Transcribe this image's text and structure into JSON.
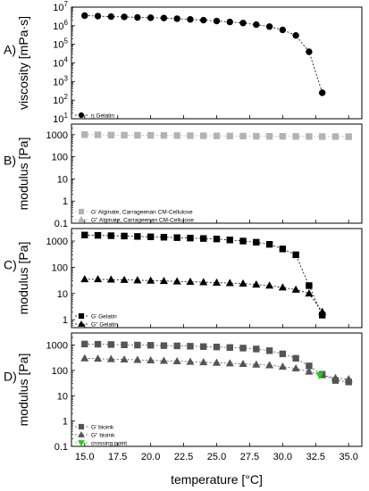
{
  "chart_data": {
    "type": "scatter",
    "x_axis": {
      "label": "temperature [°C]",
      "ticks": [
        15.0,
        17.5,
        20.0,
        22.5,
        25.0,
        27.5,
        30.0,
        32.5,
        35.0
      ],
      "tick_labels": [
        "15.0",
        "17.5",
        "20.0",
        "22.5",
        "25.0",
        "27.5",
        "30.0",
        "32.5",
        "35.0"
      ],
      "xlim": [
        14.0,
        36.0
      ]
    },
    "panels": [
      {
        "label": "A)",
        "ylabel": "viscosity [mPa·s]",
        "yscale": "log",
        "ylim": [
          10,
          10000000
        ],
        "ytick_exponents": [
          1,
          2,
          3,
          4,
          5,
          6,
          7
        ],
        "ytick_base": "10",
        "series": [
          {
            "name": "η Gelatin",
            "marker": "circle",
            "color": "#000000",
            "x": [
              15,
              16,
              17,
              18,
              19,
              20,
              21,
              22,
              23,
              24,
              25,
              26,
              27,
              28,
              29,
              30,
              31,
              32,
              33
            ],
            "y": [
              3500000,
              3300000,
              3100000,
              3000000,
              2800000,
              2700000,
              2600000,
              2400000,
              2200000,
              2000000,
              1800000,
              1600000,
              1400000,
              1150000,
              900000,
              600000,
              300000,
              40000,
              250
            ]
          }
        ]
      },
      {
        "label": "B)",
        "ylabel": "modulus [Pa]",
        "yscale": "log",
        "ylim": [
          0.1,
          3000
        ],
        "ytick_values": [
          0.1,
          1,
          10,
          100,
          1000
        ],
        "ytick_labels": [
          "0.1",
          "1",
          "10",
          "100",
          "1000"
        ],
        "series": [
          {
            "name": "G' Alginate, Carrageenan CM-Cellulose",
            "marker": "square",
            "color": "#b3b3b3",
            "x": [
              15,
              16,
              17,
              18,
              19,
              20,
              21,
              22,
              23,
              24,
              25,
              26,
              27,
              28,
              29,
              30,
              31,
              32,
              33,
              34,
              35
            ],
            "y": [
              1000,
              980,
              960,
              950,
              940,
              930,
              920,
              910,
              900,
              890,
              880,
              870,
              860,
              850,
              840,
              840,
              830,
              830,
              820,
              820,
              810
            ]
          },
          {
            "name": "G'' Alginate, Carrageenan CM-Cellulose",
            "marker": "triangle",
            "color": "#b3b3b3",
            "x": [],
            "y": []
          }
        ]
      },
      {
        "label": "C)",
        "ylabel": "modulus [Pa]",
        "yscale": "log",
        "ylim": [
          0.5,
          3000
        ],
        "ytick_values": [
          1,
          10,
          100,
          1000
        ],
        "ytick_labels": [
          "1",
          "10",
          "100",
          "1000"
        ],
        "series": [
          {
            "name": "G' Gelatin",
            "marker": "square",
            "color": "#000000",
            "x": [
              15,
              16,
              17,
              18,
              19,
              20,
              21,
              22,
              23,
              24,
              25,
              26,
              27,
              28,
              29,
              30,
              31,
              32,
              33
            ],
            "y": [
              1700,
              1650,
              1600,
              1550,
              1500,
              1450,
              1400,
              1350,
              1300,
              1250,
              1200,
              1100,
              1000,
              900,
              750,
              500,
              300,
              20,
              1.5
            ]
          },
          {
            "name": "G'' Gelatin",
            "marker": "triangle",
            "color": "#000000",
            "x": [
              15,
              16,
              17,
              18,
              19,
              20,
              21,
              22,
              23,
              24,
              25,
              26,
              27,
              28,
              29,
              30,
              31,
              32,
              33
            ],
            "y": [
              35,
              35,
              34,
              33,
              32,
              31,
              30,
              29,
              28,
              27,
              26,
              25,
              24,
              22,
              20,
              17,
              14,
              10,
              2
            ]
          }
        ]
      },
      {
        "label": "D)",
        "ylabel": "modulus [Pa]",
        "yscale": "log",
        "ylim": [
          0.1,
          3000
        ],
        "ytick_values": [
          0.1,
          1,
          10,
          100,
          1000
        ],
        "ytick_labels": [
          "0.1",
          "1",
          "10",
          "100",
          "1000"
        ],
        "series": [
          {
            "name": "G' bioink",
            "marker": "square",
            "color": "#555555",
            "x": [
              15,
              16,
              17,
              18,
              19,
              20,
              21,
              22,
              23,
              24,
              25,
              26,
              27,
              28,
              29,
              30,
              31,
              32,
              33,
              34,
              35
            ],
            "y": [
              1100,
              1080,
              1050,
              1020,
              1000,
              980,
              950,
              930,
              900,
              870,
              840,
              800,
              760,
              700,
              600,
              450,
              300,
              150,
              70,
              40,
              35
            ]
          },
          {
            "name": "G'' bioink",
            "marker": "triangle",
            "color": "#555555",
            "x": [
              15,
              16,
              17,
              18,
              19,
              20,
              21,
              22,
              23,
              24,
              25,
              26,
              27,
              28,
              29,
              30,
              31,
              32,
              33,
              34,
              35
            ],
            "y": [
              300,
              290,
              280,
              270,
              260,
              250,
              240,
              230,
              220,
              210,
              200,
              190,
              180,
              170,
              160,
              140,
              120,
              90,
              65,
              50,
              45
            ]
          },
          {
            "name": "crossing point",
            "marker": "triangle-down",
            "color": "#22cc22",
            "x": [
              32.8
            ],
            "y": [
              65
            ]
          }
        ]
      }
    ]
  }
}
